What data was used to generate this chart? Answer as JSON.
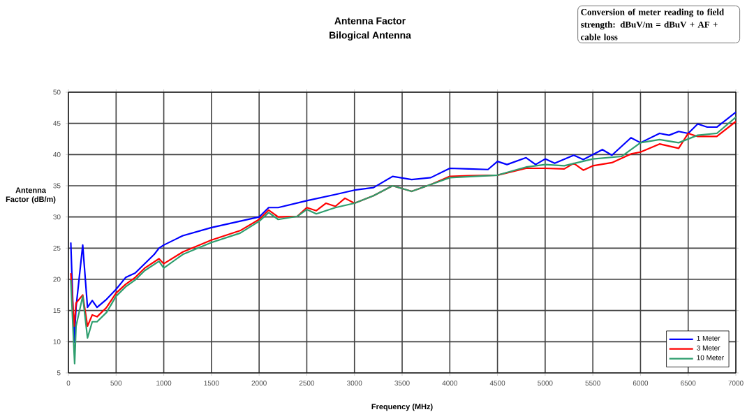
{
  "chart_data": {
    "type": "line",
    "title": "Antenna Factor",
    "subtitle": "Bilogical Antenna",
    "xlabel": "Frequency (MHz)",
    "ylabel": "Antenna Factor (dB/m)",
    "annotations": [
      "Conversion of meter reading to field strength: dBuV/m = dBuV + AF + cable loss"
    ],
    "xlim": [
      0,
      7000
    ],
    "xticks": [
      0,
      500,
      1000,
      1500,
      2000,
      2500,
      3000,
      3500,
      4000,
      4500,
      5000,
      5500,
      6000,
      6500,
      7000
    ],
    "ylim": [
      5,
      50
    ],
    "yticks": [
      5,
      10,
      15,
      20,
      25,
      30,
      35,
      40,
      45,
      50
    ],
    "grid": true,
    "legend": "bottom right",
    "marker": "none",
    "line_style": "solid",
    "series": [
      {
        "name": "1 Meter",
        "color": "#0000ff",
        "x": [
          25,
          60,
          80,
          150,
          200,
          250,
          300,
          400,
          500,
          600,
          700,
          800,
          900,
          950,
          1000,
          1200,
          1500,
          2000,
          2100,
          2200,
          2500,
          2800,
          3000,
          3200,
          3400,
          3600,
          3800,
          4000,
          4200,
          4400,
          4500,
          4600,
          4800,
          4900,
          5000,
          5100,
          5300,
          5400,
          5600,
          5700,
          5900,
          6000,
          6200,
          6300,
          6400,
          6500,
          6600,
          6700,
          6800,
          7000
        ],
        "values": [
          25.9,
          9.9,
          15.5,
          25.5,
          15.5,
          16.6,
          15.5,
          16.8,
          18.4,
          20.3,
          21,
          22.5,
          24,
          25,
          25.5,
          27,
          28.3,
          30,
          31.5,
          31.5,
          32.6,
          33.6,
          34.3,
          34.7,
          36.5,
          36,
          36.3,
          37.8,
          37.7,
          37.6,
          38.9,
          38.4,
          39.5,
          38.4,
          39.3,
          38.6,
          39.9,
          39.2,
          40.8,
          39.9,
          42.7,
          41.9,
          43.4,
          43.1,
          43.7,
          43.4,
          44.9,
          44.4,
          44.4,
          46.8
        ]
      },
      {
        "name": "3 Meter",
        "color": "#ff0000",
        "x": [
          25,
          60,
          80,
          150,
          200,
          250,
          300,
          400,
          500,
          600,
          700,
          800,
          950,
          1000,
          1200,
          1500,
          1800,
          2000,
          2100,
          2200,
          2400,
          2500,
          2600,
          2700,
          2800,
          2900,
          3000,
          3200,
          3400,
          3600,
          3800,
          4000,
          4200,
          4500,
          4800,
          5000,
          5200,
          5300,
          5400,
          5500,
          5700,
          5900,
          6000,
          6200,
          6400,
          6500,
          6600,
          6800,
          7000
        ],
        "values": [
          21,
          12.5,
          16.2,
          17.5,
          12.5,
          14.3,
          14,
          15.5,
          17.8,
          19.2,
          20.3,
          21.8,
          23.3,
          22.5,
          24.4,
          26.3,
          27.8,
          29.6,
          31.1,
          30,
          30.1,
          31.5,
          31,
          32.2,
          31.7,
          33,
          32.2,
          33.4,
          35,
          34.1,
          35.2,
          36.5,
          36.6,
          36.7,
          37.8,
          37.8,
          37.7,
          38.6,
          37.5,
          38.2,
          38.7,
          40.1,
          40.4,
          41.7,
          41,
          43.4,
          42.9,
          42.9,
          45.3
        ]
      },
      {
        "name": "10 Meter",
        "color": "#2e9e6e",
        "x": [
          25,
          65,
          80,
          150,
          200,
          250,
          300,
          400,
          500,
          600,
          700,
          800,
          950,
          1000,
          1200,
          1500,
          1800,
          2000,
          2100,
          2200,
          2400,
          2500,
          2600,
          2800,
          3000,
          3200,
          3400,
          3600,
          3800,
          4000,
          4500,
          4800,
          5000,
          5200,
          5500,
          5800,
          6000,
          6200,
          6400,
          6600,
          6800,
          7000
        ],
        "values": [
          19.9,
          6.5,
          12.5,
          17.3,
          10.6,
          13.2,
          13.2,
          14.7,
          17.3,
          18.8,
          19.9,
          21.4,
          22.9,
          21.8,
          24,
          25.9,
          27.4,
          29.3,
          30.7,
          29.6,
          30.1,
          31.2,
          30.5,
          31.5,
          32.2,
          33.4,
          35,
          34.1,
          35.2,
          36.3,
          36.7,
          38,
          38.4,
          38.2,
          39.3,
          39.7,
          41.9,
          42.4,
          41.9,
          43.1,
          43.4,
          46
        ]
      }
    ]
  }
}
